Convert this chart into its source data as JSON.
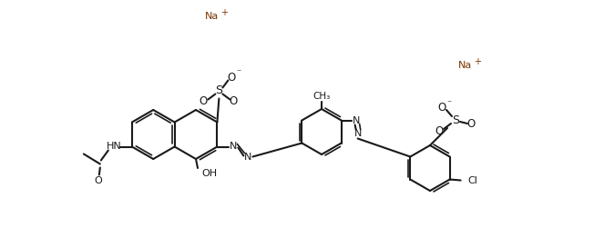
{
  "bg": "#ffffff",
  "lc": "#1a1a1a",
  "na_c": "#7a3500",
  "lw": 1.5,
  "lw2": 1.2,
  "fs": 7.5,
  "figsize": [
    6.52,
    2.62
  ],
  "dpi": 100,
  "na1": [
    232,
    18
  ],
  "na2": [
    510,
    72
  ]
}
